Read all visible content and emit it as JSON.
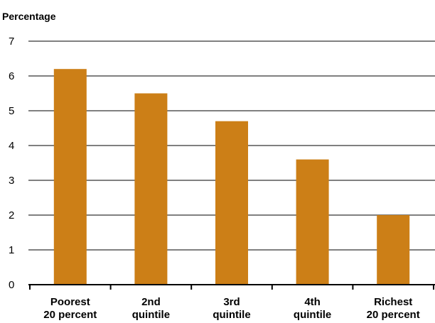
{
  "chart_data": {
    "type": "bar",
    "title": "",
    "ylabel": "Percentage",
    "xlabel": "",
    "categories": [
      [
        "Poorest",
        "20 percent"
      ],
      [
        "2nd",
        "quintile"
      ],
      [
        "3rd",
        "quintile"
      ],
      [
        "4th",
        "quintile"
      ],
      [
        "Richest",
        "20 percent"
      ]
    ],
    "values": [
      6.2,
      5.5,
      4.7,
      3.6,
      2.0
    ],
    "ylim": [
      0,
      7
    ],
    "yticks": [
      "0",
      "1",
      "2",
      "3",
      "4",
      "5",
      "6",
      "7"
    ],
    "grid": true,
    "legend": "none",
    "colors": {
      "bar": "#CC7F17",
      "grid": "#000000",
      "axis": "#000000"
    }
  }
}
